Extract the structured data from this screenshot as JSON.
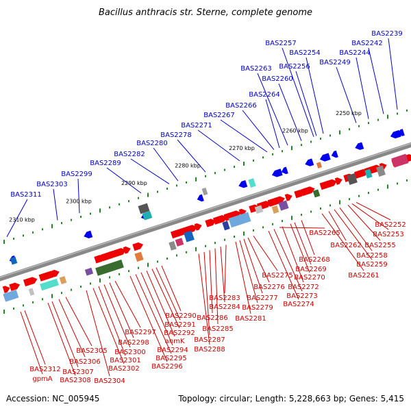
{
  "title": "Bacillus anthracis str. Sterne, complete genome",
  "footer": {
    "accession": "Accession: NC_005945",
    "summary": "Topology: circular; Length: 5,228,663 bp; Genes: 5,415"
  },
  "colors": {
    "top_strand_label": "#0000cc",
    "bottom_strand_label": "#cc0000",
    "top_arrow": "#0000ee",
    "bottom_arrow": "#ee0000",
    "backbone": "#888888",
    "tick": "#228822"
  },
  "kbp_markers": [
    "2310 kbp",
    "2300 kbp",
    "2290 kbp",
    "2280 kbp",
    "2270 kbp",
    "2260 kbp",
    "2250 kbp"
  ],
  "top_labels": [
    "BAS2239",
    "BAS2242",
    "BAS2244",
    "BAS2249",
    "BAS2254",
    "BAS2256",
    "BAS2257",
    "BAS2260",
    "BAS2263",
    "BAS2264",
    "BAS2266",
    "BAS2267",
    "BAS2271",
    "BAS2278",
    "BAS2280",
    "BAS2282",
    "BAS2289",
    "BAS2299",
    "BAS2303",
    "BAS2311"
  ],
  "bottom_labels": [
    "BAS2252",
    "BAS2253",
    "BAS2255",
    "BAS2258",
    "BAS2259",
    "BAS2261",
    "BAS2262",
    "BAS2265",
    "BAS2268",
    "BAS2269",
    "BAS2270",
    "BAS2272",
    "BAS2273",
    "BAS2274",
    "BAS2275",
    "BAS2276",
    "BAS2277",
    "BAS2279",
    "BAS2281",
    "BAS2283",
    "BAS2284",
    "BAS2285",
    "BAS2286",
    "BAS2287",
    "BAS2288",
    "BAS2290",
    "BAS2291",
    "BAS2292",
    "anmK",
    "BAS2294",
    "BAS2295",
    "BAS2296",
    "BAS2297",
    "BAS2298",
    "BAS2300",
    "BAS2301",
    "BAS2302",
    "BAS2304",
    "BAS2305",
    "BAS2306",
    "BAS2307",
    "BAS2308",
    "BAS2312",
    "gpmA"
  ]
}
